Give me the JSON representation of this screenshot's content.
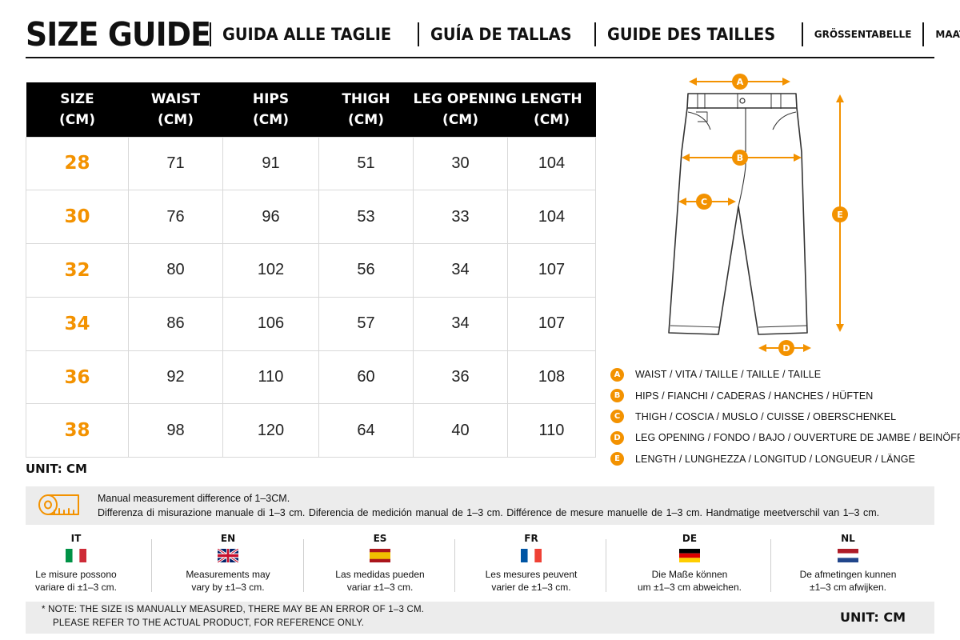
{
  "header": {
    "title": "SIZE GUIDE",
    "subtitles": [
      "GUIDA ALLE TAGLIE",
      "GUÍA DE TALLAS",
      "GUIDE DES TAILLES",
      "GRÖSSENTABELLE",
      "MAATTABEL"
    ]
  },
  "table": {
    "headers": [
      [
        "SIZE",
        "(CM)"
      ],
      [
        "WAIST",
        "(CM)"
      ],
      [
        "HIPS",
        "(CM)"
      ],
      [
        "THIGH",
        "(CM)"
      ],
      [
        "LEG OPENING",
        "(CM)"
      ],
      [
        "LENGTH",
        "(CM)"
      ]
    ],
    "rows": [
      [
        "28",
        "71",
        "91",
        "51",
        "30",
        "104"
      ],
      [
        "30",
        "76",
        "96",
        "53",
        "33",
        "104"
      ],
      [
        "32",
        "80",
        "102",
        "56",
        "34",
        "107"
      ],
      [
        "34",
        "86",
        "106",
        "57",
        "34",
        "107"
      ],
      [
        "36",
        "92",
        "110",
        "60",
        "36",
        "108"
      ],
      [
        "38",
        "98",
        "120",
        "64",
        "40",
        "110"
      ]
    ],
    "unit": "UNIT: CM"
  },
  "diagram": {
    "markers": [
      "A",
      "B",
      "C",
      "D",
      "E"
    ]
  },
  "legend": [
    {
      "letter": "A",
      "text": "WAIST / VITA / TAILLE / TAILLE / TAILLE"
    },
    {
      "letter": "B",
      "text": "HIPS / FIANCHI / CADERAS / HANCHES / HÜFTEN"
    },
    {
      "letter": "C",
      "text": "THIGH / COSCIA / MUSLO / CUISSE / OBERSCHENKEL"
    },
    {
      "letter": "D",
      "text": "LEG OPENING / FONDO / BAJO / OUVERTURE DE JAMBE / BEINÖFFNUNG"
    },
    {
      "letter": "E",
      "text": "LENGTH / LUNGHEZZA / LONGITUD / LONGUEUR / LÄNGE"
    }
  ],
  "note": {
    "line1": "Manual measurement difference of 1–3CM.",
    "line2": "Differenza di misurazione manuale di 1–3 cm.   Diferencia de medición manual de 1–3 cm.   Différence de mesure manuelle de 1–3 cm.   Handmatige meetverschil van 1–3 cm."
  },
  "languages": [
    {
      "code": "IT",
      "line1": "Le misure possono",
      "line2": "variare di ±1–3 cm."
    },
    {
      "code": "EN",
      "line1": "Measurements may",
      "line2": "vary by ±1–3 cm."
    },
    {
      "code": "ES",
      "line1": "Las medidas pueden",
      "line2": "variar ±1–3 cm."
    },
    {
      "code": "FR",
      "line1": "Les mesures peuvent",
      "line2": "varier de ±1–3 cm."
    },
    {
      "code": "DE",
      "line1": "Die Maße können",
      "line2": "um ±1–3 cm abweichen."
    },
    {
      "code": "NL",
      "line1": "De afmetingen kunnen",
      "line2": "±1–3 cm afwijken."
    }
  ],
  "footer": {
    "line1": "* NOTE: THE SIZE IS MANUALLY MEASURED, THERE MAY BE AN ERROR OF 1–3 CM.",
    "line2": "PLEASE REFER TO THE ACTUAL PRODUCT, FOR REFERENCE ONLY.",
    "unit": "UNIT: CM"
  },
  "colors": {
    "accent": "#f39200",
    "header_bg": "#000000",
    "panel_bg": "#ececec"
  }
}
